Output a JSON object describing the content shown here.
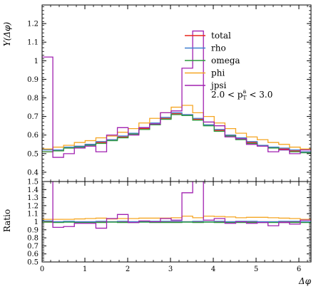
{
  "chart_data": {
    "type": "line",
    "style": "step-histogram",
    "bin_edges": [
      0.0,
      0.2513,
      0.5027,
      0.754,
      1.0053,
      1.2566,
      1.508,
      1.7593,
      2.0106,
      2.2619,
      2.5133,
      2.7646,
      3.0159,
      3.2673,
      3.5186,
      3.7699,
      4.0212,
      4.2726,
      4.5239,
      4.7752,
      5.0265,
      5.2779,
      5.5292,
      5.7805,
      6.0319,
      6.2832
    ],
    "main_panel": {
      "ylabel": "Y(Δφ)",
      "ylim": [
        0.35,
        1.3
      ],
      "yticks": [
        "0.4",
        "0.5",
        "0.6",
        "0.7",
        "0.8",
        "0.9",
        "1",
        "1.1",
        "1.2"
      ],
      "ytick_values": [
        0.4,
        0.5,
        0.6,
        0.7,
        0.8,
        0.9,
        1.0,
        1.1,
        1.2
      ]
    },
    "ratio_panel": {
      "ylabel": "Ratio",
      "ylim": [
        0.5,
        1.5
      ],
      "yticks": [
        "0.5",
        "0.6",
        "0.7",
        "0.8",
        "0.9",
        "1",
        "1.1",
        "1.2",
        "1.3",
        "1.4",
        "1.5"
      ],
      "ytick_values": [
        0.5,
        0.6,
        0.7,
        0.8,
        0.9,
        1.0,
        1.1,
        1.2,
        1.3,
        1.4,
        1.5
      ]
    },
    "xlabel": "Δφ",
    "xlim": [
      0,
      6.2832
    ],
    "xticks": [
      "0",
      "1",
      "2",
      "3",
      "4",
      "5",
      "6"
    ],
    "xtick_values": [
      0,
      1,
      2,
      3,
      4,
      5,
      6
    ],
    "annotation": "2.0 < p",
    "annotation_sup": "a",
    "annotation_sub": "T",
    "annotation_tail": " < 3.0",
    "legend_position": "top-right",
    "series": [
      {
        "name": "total",
        "color": "#e8271c",
        "values": [
          0.51,
          0.52,
          0.53,
          0.54,
          0.55,
          0.56,
          0.575,
          0.59,
          0.61,
          0.635,
          0.66,
          0.69,
          0.715,
          0.71,
          0.685,
          0.655,
          0.625,
          0.6,
          0.58,
          0.56,
          0.545,
          0.535,
          0.525,
          0.515,
          0.51
        ],
        "ratio": [
          1.0,
          1.0,
          1.0,
          1.0,
          1.0,
          1.0,
          1.0,
          1.0,
          1.0,
          1.0,
          1.0,
          1.0,
          1.0,
          1.0,
          1.0,
          1.0,
          1.0,
          1.0,
          1.0,
          1.0,
          1.0,
          1.0,
          1.0,
          1.0,
          1.0
        ]
      },
      {
        "name": "rho",
        "color": "#3f7fd0",
        "values": [
          0.52,
          0.52,
          0.535,
          0.54,
          0.55,
          0.565,
          0.575,
          0.595,
          0.61,
          0.64,
          0.665,
          0.695,
          0.72,
          0.71,
          0.69,
          0.655,
          0.63,
          0.6,
          0.585,
          0.565,
          0.545,
          0.535,
          0.53,
          0.52,
          0.51
        ],
        "ratio": [
          1.01,
          1.0,
          1.005,
          1.0,
          1.0,
          1.005,
          1.0,
          1.005,
          1.0,
          1.005,
          1.005,
          1.005,
          1.005,
          1.0,
          1.005,
          1.0,
          1.005,
          1.0,
          1.005,
          1.005,
          1.0,
          1.0,
          1.005,
          1.005,
          1.0
        ]
      },
      {
        "name": "omega",
        "color": "#2a9a3a",
        "values": [
          0.51,
          0.515,
          0.53,
          0.535,
          0.545,
          0.555,
          0.57,
          0.585,
          0.605,
          0.63,
          0.655,
          0.685,
          0.71,
          0.705,
          0.68,
          0.65,
          0.62,
          0.595,
          0.575,
          0.555,
          0.54,
          0.53,
          0.52,
          0.51,
          0.505
        ],
        "ratio": [
          0.995,
          0.99,
          0.995,
          0.99,
          0.99,
          0.99,
          0.995,
          0.99,
          0.99,
          0.995,
          0.99,
          0.99,
          0.99,
          0.995,
          0.99,
          0.995,
          0.99,
          0.99,
          0.99,
          0.99,
          0.99,
          0.99,
          0.99,
          0.99,
          0.99
        ]
      },
      {
        "name": "phi",
        "color": "#f5a623",
        "values": [
          0.525,
          0.535,
          0.545,
          0.56,
          0.57,
          0.585,
          0.595,
          0.615,
          0.635,
          0.665,
          0.69,
          0.72,
          0.75,
          0.76,
          0.72,
          0.7,
          0.665,
          0.635,
          0.61,
          0.59,
          0.575,
          0.56,
          0.55,
          0.535,
          0.525
        ],
        "ratio": [
          1.03,
          1.03,
          1.03,
          1.035,
          1.04,
          1.045,
          1.035,
          1.04,
          1.04,
          1.045,
          1.045,
          1.045,
          1.05,
          1.07,
          1.05,
          1.07,
          1.065,
          1.06,
          1.05,
          1.055,
          1.055,
          1.05,
          1.045,
          1.04,
          1.03
        ]
      },
      {
        "name": "jpsi",
        "color": "#a020b0",
        "values": [
          1.02,
          0.48,
          0.5,
          0.53,
          0.54,
          0.51,
          0.6,
          0.64,
          0.6,
          0.64,
          0.66,
          0.72,
          0.73,
          0.96,
          1.16,
          0.67,
          0.65,
          0.59,
          0.58,
          0.55,
          0.54,
          0.51,
          0.52,
          0.5,
          0.52
        ],
        "ratio": [
          2.0,
          0.93,
          0.94,
          0.98,
          0.98,
          0.92,
          1.04,
          1.09,
          0.99,
          1.01,
          1.0,
          1.04,
          1.02,
          1.36,
          1.69,
          1.02,
          1.04,
          0.98,
          1.0,
          0.98,
          0.99,
          0.95,
          0.99,
          0.97,
          1.02
        ]
      }
    ]
  }
}
